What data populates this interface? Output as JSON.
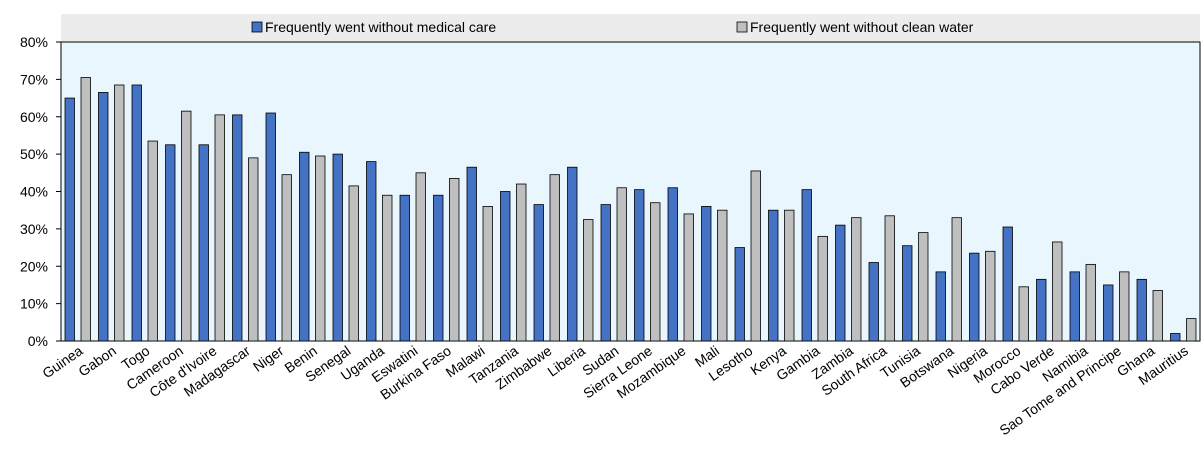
{
  "chart_data": {
    "type": "bar",
    "categories": [
      "Guinea",
      "Gabon",
      "Togo",
      "Cameroon",
      "Côte d'Ivoire",
      "Madagascar",
      "Niger",
      "Benin",
      "Senegal",
      "Uganda",
      "Eswatini",
      "Burkina Faso",
      "Malawi",
      "Tanzania",
      "Zimbabwe",
      "Liberia",
      "Sudan",
      "Sierra Leone",
      "Mozambique",
      "Mali",
      "Lesotho",
      "Kenya",
      "Gambia",
      "Zambia",
      "South Africa",
      "Tunisia",
      "Botswana",
      "Nigeria",
      "Morocco",
      "Cabo Verde",
      "Namibia",
      "Sao Tome and Principe",
      "Ghana",
      "Mauritius"
    ],
    "series": [
      {
        "name": "Frequently went without medical care",
        "color": "#4472c4",
        "values": [
          65,
          66.5,
          68.5,
          52.5,
          52.5,
          60.5,
          61,
          50.5,
          50,
          48,
          39,
          39,
          46.5,
          40,
          36.5,
          46.5,
          36.5,
          40.5,
          41,
          36,
          25,
          35,
          40.5,
          31,
          21,
          25.5,
          18.5,
          23.5,
          30.5,
          16.5,
          18.5,
          15,
          16.5,
          2
        ]
      },
      {
        "name": "Frequently went without clean water",
        "color": "#bfbfbf",
        "values": [
          70.5,
          68.5,
          53.5,
          61.5,
          60.5,
          49,
          44.5,
          49.5,
          41.5,
          39,
          45,
          43.5,
          36,
          42,
          44.5,
          32.5,
          41,
          37,
          34,
          35,
          45.5,
          35,
          28,
          33,
          33.5,
          29,
          33,
          24,
          14.5,
          26.5,
          20.5,
          18.5,
          13.5,
          6
        ]
      }
    ],
    "ylim": [
      0,
      80
    ],
    "yticks": [
      0,
      10,
      20,
      30,
      40,
      50,
      60,
      70,
      80
    ],
    "ytick_labels": [
      "0%",
      "10%",
      "20%",
      "30%",
      "40%",
      "50%",
      "60%",
      "70%",
      "80%"
    ],
    "legend_position": "top",
    "plot_background": "#eaf6fd",
    "grid": false
  }
}
